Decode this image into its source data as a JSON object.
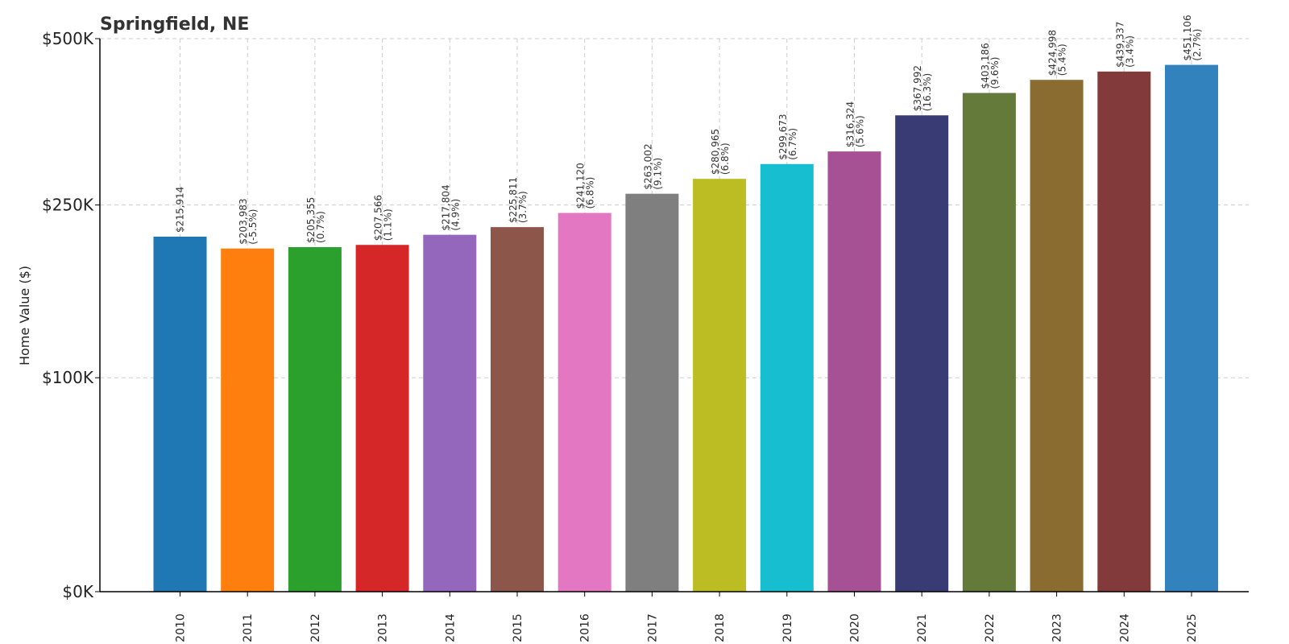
{
  "chart_data": {
    "type": "bar",
    "title": "Springfield, NE",
    "ylabel": "Home Value ($)",
    "xlabel": "",
    "ylim": [
      0,
      500000
    ],
    "yscale": "symlog",
    "yticks": [
      {
        "value": 0,
        "label": "$0K"
      },
      {
        "value": 100000,
        "label": "$100K"
      },
      {
        "value": 250000,
        "label": "$250K"
      },
      {
        "value": 500000,
        "label": "$500K"
      }
    ],
    "grid": true,
    "categories": [
      "2010",
      "2011",
      "2012",
      "2013",
      "2014",
      "2015",
      "2016",
      "2017",
      "2018",
      "2019",
      "2020",
      "2021",
      "2022",
      "2023",
      "2024",
      "2025"
    ],
    "values": [
      215914,
      203983,
      205355,
      207566,
      217804,
      225811,
      241120,
      263002,
      280965,
      299673,
      316324,
      367992,
      403186,
      424998,
      439337,
      451106
    ],
    "value_labels": [
      "$215,914",
      "$203,983",
      "$205,355",
      "$207,566",
      "$217,804",
      "$225,811",
      "$241,120",
      "$263,002",
      "$280,965",
      "$299,673",
      "$316,324",
      "$367,992",
      "$403,186",
      "$424,998",
      "$439,337",
      "$451,106"
    ],
    "change_labels": [
      "",
      "(-5.5%)",
      "(0.7%)",
      "(1.1%)",
      "(4.9%)",
      "(3.7%)",
      "(6.8%)",
      "(9.1%)",
      "(6.8%)",
      "(6.7%)",
      "(5.6%)",
      "(16.3%)",
      "(9.6%)",
      "(5.4%)",
      "(3.4%)",
      "(2.7%)"
    ],
    "colors": [
      "#1f77b4",
      "#ff7f0e",
      "#2ca02c",
      "#d62728",
      "#9467bd",
      "#8c564b",
      "#e377c2",
      "#7f7f7f",
      "#bcbd22",
      "#17becf",
      "#a65193",
      "#393b75",
      "#637a3a",
      "#8a6b30",
      "#833a3a",
      "#3182bd"
    ]
  }
}
